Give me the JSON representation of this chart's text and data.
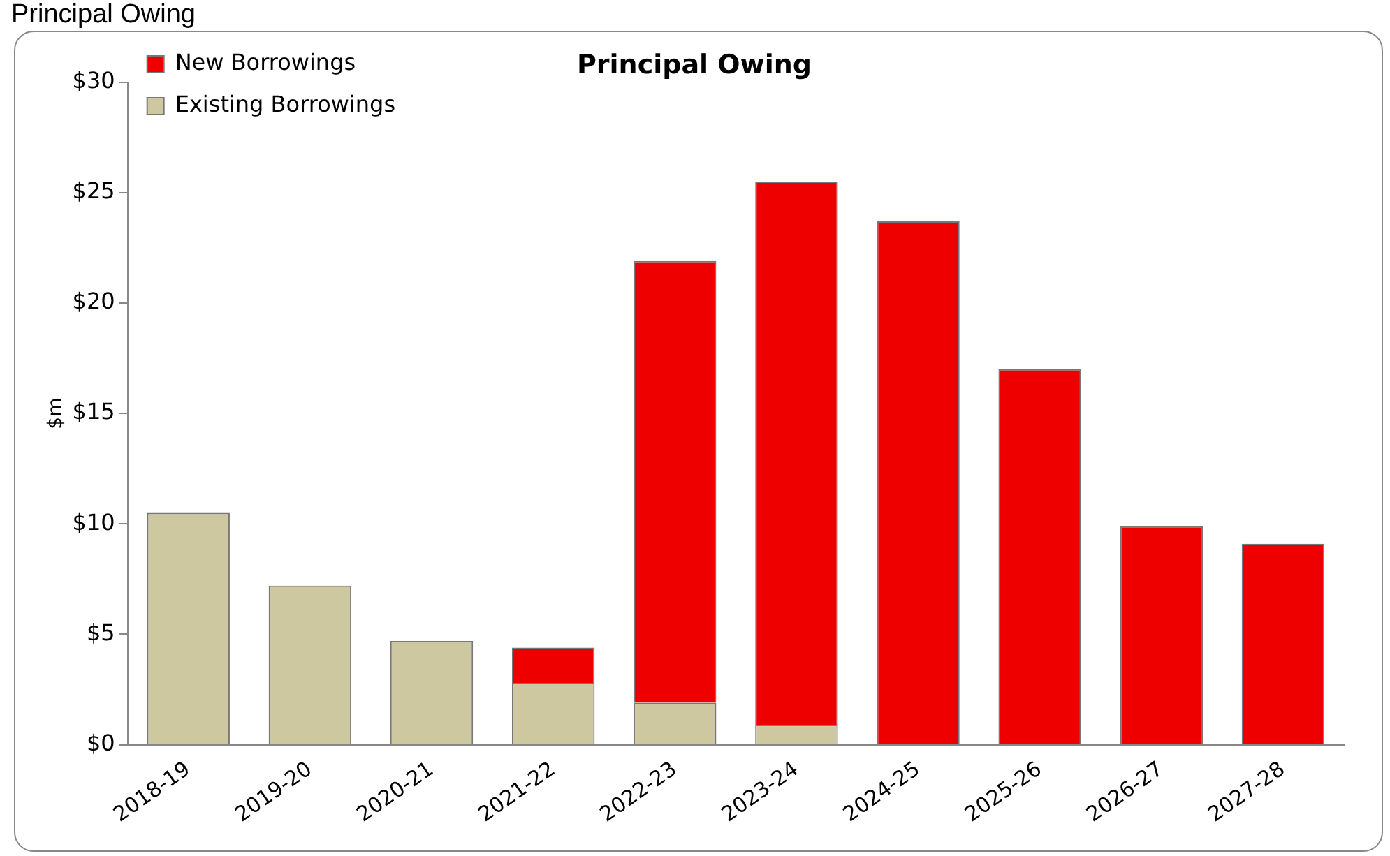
{
  "chart_data": {
    "type": "bar",
    "title": "Principal Owing",
    "ylabel": "$m",
    "annotations": [
      "Principal Owing"
    ],
    "categories": [
      "2018-19",
      "2019-20",
      "2020-21",
      "2021-22",
      "2022-23",
      "2023-24",
      "2024-25",
      "2025-26",
      "2026-27",
      "2027-28"
    ],
    "series": [
      {
        "name": "Existing Borrowings",
        "color": "#cdc8a0",
        "values": [
          10.5,
          7.2,
          4.7,
          2.8,
          1.9,
          0.9,
          null,
          null,
          null,
          null
        ]
      },
      {
        "name": "New Borrowings",
        "color": "#ee0000",
        "values": [
          null,
          null,
          null,
          1.6,
          20.0,
          24.6,
          23.7,
          17.0,
          9.9,
          9.1
        ]
      }
    ],
    "stacked": true,
    "ylim": [
      0,
      30
    ],
    "yticks": [
      {
        "value": 0,
        "label": "$0"
      },
      {
        "value": 5,
        "label": "$5"
      },
      {
        "value": 10,
        "label": "$10"
      },
      {
        "value": 15,
        "label": "$15"
      },
      {
        "value": 20,
        "label": "$20"
      },
      {
        "value": 25,
        "label": "$25"
      },
      {
        "value": 30,
        "label": "$30"
      }
    ],
    "grid": false,
    "legend": "top left"
  }
}
